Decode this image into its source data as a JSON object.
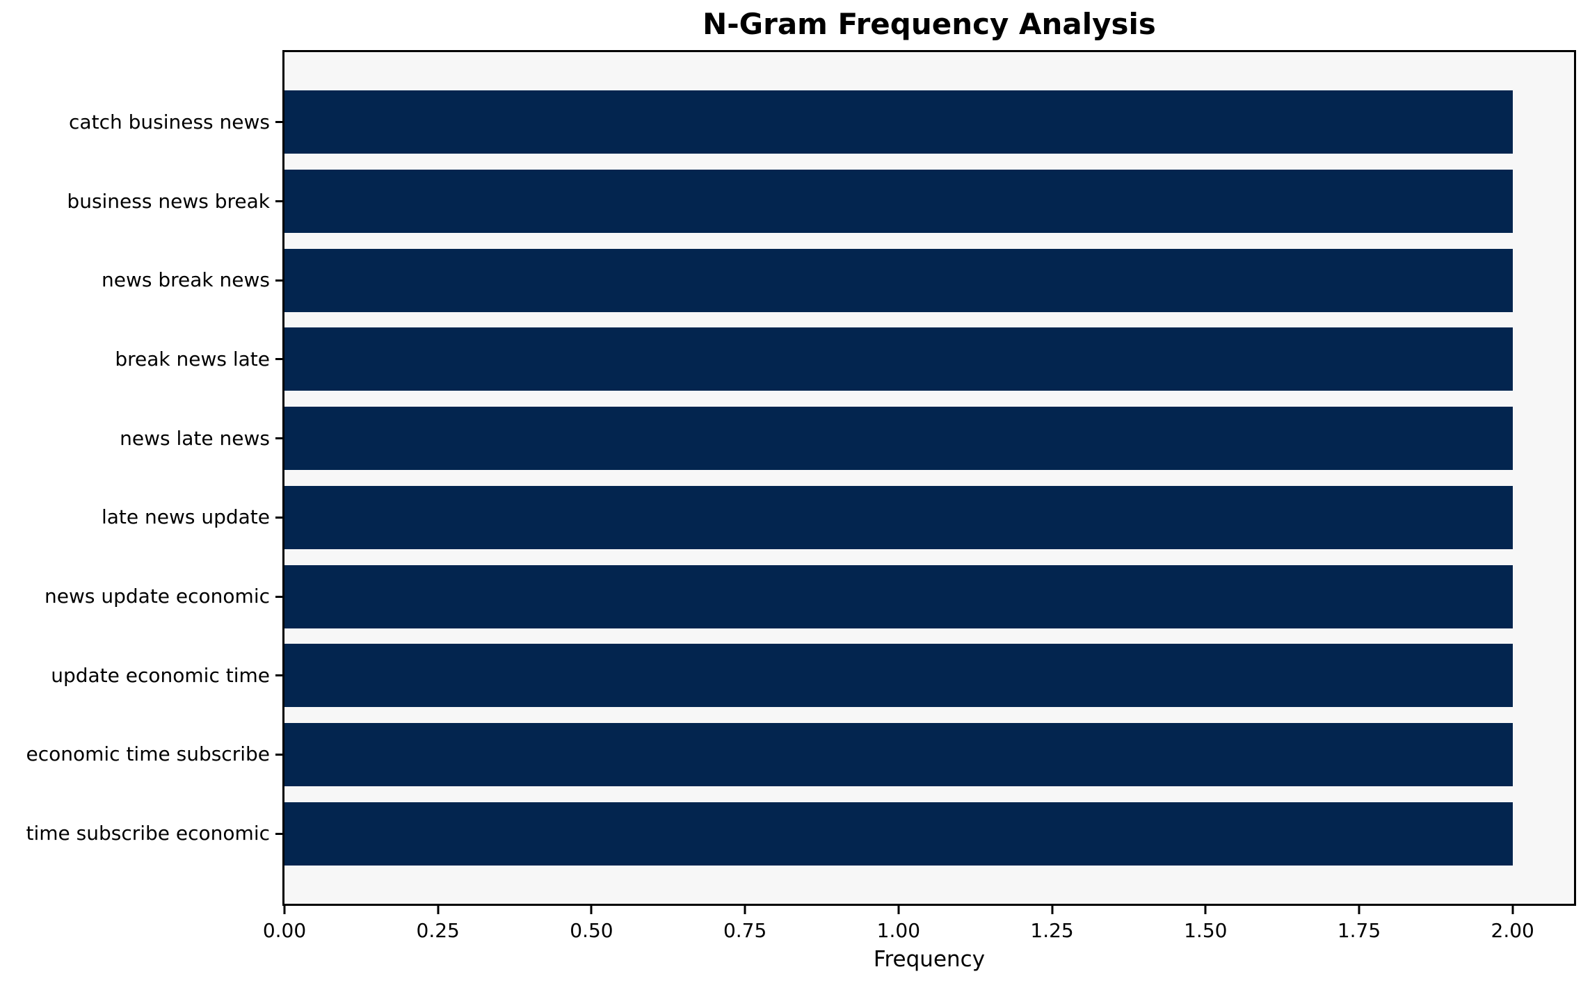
{
  "chart_data": {
    "type": "bar",
    "orientation": "horizontal",
    "title": "N-Gram Frequency Analysis",
    "xlabel": "Frequency",
    "ylabel": "",
    "categories": [
      "catch business news",
      "business news break",
      "news break news",
      "break news late",
      "news late news",
      "late news update",
      "news update economic",
      "update economic time",
      "economic time subscribe",
      "time subscribe economic"
    ],
    "values": [
      2,
      2,
      2,
      2,
      2,
      2,
      2,
      2,
      2,
      2
    ],
    "xlim": [
      0,
      2.1
    ],
    "xticks": [
      {
        "v": 0.0,
        "label": "0.00"
      },
      {
        "v": 0.25,
        "label": "0.25"
      },
      {
        "v": 0.5,
        "label": "0.50"
      },
      {
        "v": 0.75,
        "label": "0.75"
      },
      {
        "v": 1.0,
        "label": "1.00"
      },
      {
        "v": 1.25,
        "label": "1.25"
      },
      {
        "v": 1.5,
        "label": "1.50"
      },
      {
        "v": 1.75,
        "label": "1.75"
      },
      {
        "v": 2.0,
        "label": "2.00"
      }
    ],
    "grid": false,
    "legend": false,
    "colors": {
      "bar": "#03254f",
      "plot_background": "#f7f7f7",
      "figure_background": "#ffffff",
      "spine": "#000000",
      "text": "#000000"
    }
  }
}
